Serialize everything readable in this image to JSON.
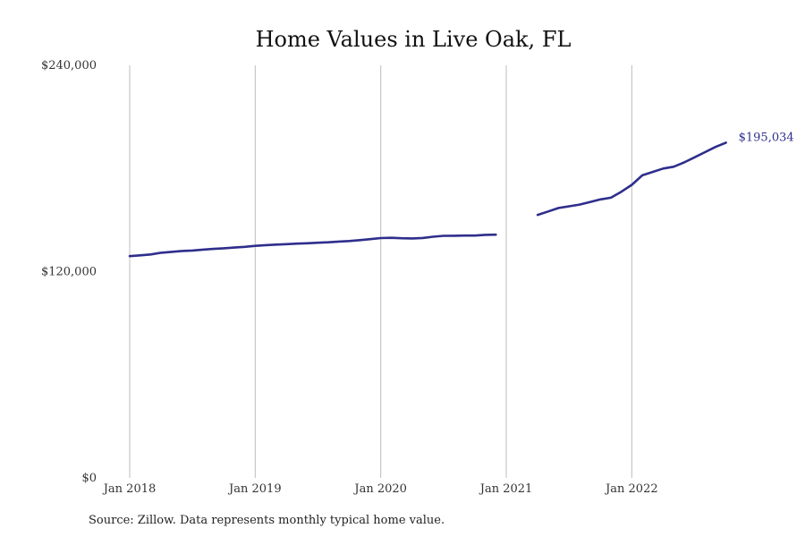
{
  "chart_data": {
    "type": "line",
    "title": "Home Values in Live Oak, FL",
    "xlabel": "",
    "ylabel": "",
    "ylim": [
      0,
      240000
    ],
    "y_ticks": [
      {
        "value": 0,
        "label": "$0"
      },
      {
        "value": 120000,
        "label": "$120,000"
      },
      {
        "value": 240000,
        "label": "$240,000"
      }
    ],
    "x_range": [
      "2018-01",
      "2022-12"
    ],
    "x_ticks": [
      {
        "date": "2018-01",
        "label": "Jan 2018"
      },
      {
        "date": "2019-01",
        "label": "Jan 2019"
      },
      {
        "date": "2020-01",
        "label": "Jan 2020"
      },
      {
        "date": "2021-01",
        "label": "Jan 2021"
      },
      {
        "date": "2022-01",
        "label": "Jan 2022"
      }
    ],
    "grid": "vertical",
    "line_color": "#2e2e8c",
    "end_label": "$195,034",
    "segments": [
      [
        {
          "x": "2018-01",
          "y": 129000
        },
        {
          "x": "2018-02",
          "y": 129500
        },
        {
          "x": "2018-03",
          "y": 130000
        },
        {
          "x": "2018-04",
          "y": 131000
        },
        {
          "x": "2018-05",
          "y": 131500
        },
        {
          "x": "2018-06",
          "y": 132000
        },
        {
          "x": "2018-07",
          "y": 132300
        },
        {
          "x": "2018-08",
          "y": 132800
        },
        {
          "x": "2018-09",
          "y": 133200
        },
        {
          "x": "2018-10",
          "y": 133600
        },
        {
          "x": "2018-11",
          "y": 134000
        },
        {
          "x": "2018-12",
          "y": 134400
        },
        {
          "x": "2019-01",
          "y": 135000
        },
        {
          "x": "2019-02",
          "y": 135400
        },
        {
          "x": "2019-03",
          "y": 135700
        },
        {
          "x": "2019-04",
          "y": 136000
        },
        {
          "x": "2019-05",
          "y": 136300
        },
        {
          "x": "2019-06",
          "y": 136500
        },
        {
          "x": "2019-07",
          "y": 136800
        },
        {
          "x": "2019-08",
          "y": 137100
        },
        {
          "x": "2019-09",
          "y": 137500
        },
        {
          "x": "2019-10",
          "y": 137800
        },
        {
          "x": "2019-11",
          "y": 138300
        },
        {
          "x": "2019-12",
          "y": 138900
        },
        {
          "x": "2020-01",
          "y": 139500
        },
        {
          "x": "2020-02",
          "y": 139700
        },
        {
          "x": "2020-03",
          "y": 139400
        },
        {
          "x": "2020-04",
          "y": 139300
        },
        {
          "x": "2020-05",
          "y": 139600
        },
        {
          "x": "2020-06",
          "y": 140300
        },
        {
          "x": "2020-07",
          "y": 140800
        },
        {
          "x": "2020-08",
          "y": 140900
        },
        {
          "x": "2020-09",
          "y": 141000
        },
        {
          "x": "2020-10",
          "y": 141000
        },
        {
          "x": "2020-11",
          "y": 141400
        },
        {
          "x": "2020-12",
          "y": 141500
        }
      ],
      [
        {
          "x": "2021-04",
          "y": 153000
        },
        {
          "x": "2021-05",
          "y": 155000
        },
        {
          "x": "2021-06",
          "y": 157000
        },
        {
          "x": "2021-07",
          "y": 158000
        },
        {
          "x": "2021-08",
          "y": 159000
        },
        {
          "x": "2021-09",
          "y": 160500
        },
        {
          "x": "2021-10",
          "y": 162000
        },
        {
          "x": "2021-11",
          "y": 163000
        },
        {
          "x": "2021-12",
          "y": 166500
        },
        {
          "x": "2022-01",
          "y": 170500
        },
        {
          "x": "2022-02",
          "y": 176000
        },
        {
          "x": "2022-03",
          "y": 178000
        },
        {
          "x": "2022-04",
          "y": 180000
        },
        {
          "x": "2022-05",
          "y": 181000
        },
        {
          "x": "2022-06",
          "y": 183500
        },
        {
          "x": "2022-07",
          "y": 186500
        },
        {
          "x": "2022-08",
          "y": 189500
        },
        {
          "x": "2022-09",
          "y": 192500
        },
        {
          "x": "2022-10",
          "y": 195034
        }
      ]
    ]
  },
  "footer": {
    "source": "Source: Zillow. Data represents monthly typical home value."
  }
}
